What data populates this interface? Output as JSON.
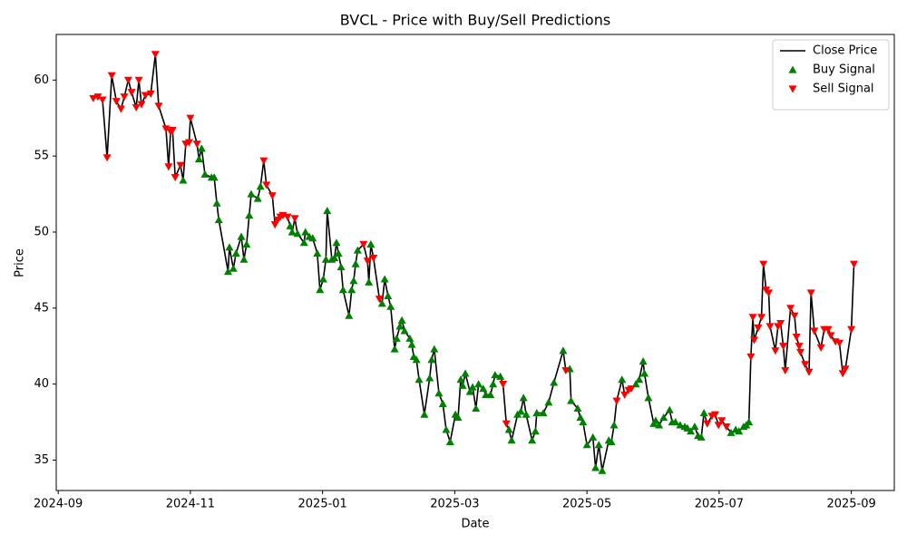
{
  "chart_data": {
    "type": "line",
    "title": "BVCL - Price with Buy/Sell Predictions",
    "x_label": "Date",
    "y_label": "Price",
    "xlim": [
      -0.03,
      12.65
    ],
    "xticks": [
      {
        "value": 0,
        "label": "2024-09"
      },
      {
        "value": 2,
        "label": "2024-11"
      },
      {
        "value": 4,
        "label": "2025-01"
      },
      {
        "value": 6,
        "label": "2025-03"
      },
      {
        "value": 8,
        "label": "2025-05"
      },
      {
        "value": 10,
        "label": "2025-07"
      },
      {
        "value": 12,
        "label": "2025-09"
      }
    ],
    "ylim": [
      33,
      63
    ],
    "yticks": [
      35,
      40,
      45,
      50,
      55,
      60
    ],
    "grid": false,
    "legend": "upper right",
    "series": [
      {
        "name": "Close Price",
        "type": "line",
        "color": "#000000",
        "x": [
          0.53,
          0.6,
          0.67,
          0.74,
          0.81,
          0.88,
          0.95,
          1.0,
          1.06,
          1.11,
          1.18,
          1.22,
          1.26,
          1.32,
          1.4,
          1.47,
          1.52,
          1.63,
          1.67,
          1.7,
          1.73,
          1.77,
          1.85,
          1.89,
          1.93,
          1.98,
          2.0,
          2.1,
          2.13,
          2.17,
          2.22,
          2.32,
          2.36,
          2.4,
          2.43,
          2.57,
          2.59,
          2.65,
          2.69,
          2.77,
          2.81,
          2.85,
          2.89,
          2.92,
          3.02,
          3.06,
          3.11,
          3.15,
          3.24,
          3.28,
          3.32,
          3.36,
          3.4,
          3.47,
          3.51,
          3.54,
          3.58,
          3.62,
          3.72,
          3.74,
          3.8,
          3.85,
          3.92,
          3.96,
          4.01,
          4.05,
          4.07,
          4.14,
          4.18,
          4.21,
          4.24,
          4.28,
          4.31,
          4.4,
          4.44,
          4.47,
          4.5,
          4.53,
          4.62,
          4.68,
          4.7,
          4.73,
          4.77,
          4.86,
          4.9,
          4.94,
          4.99,
          5.03,
          5.09,
          5.12,
          5.17,
          5.2,
          5.24,
          5.32,
          5.35,
          5.38,
          5.42,
          5.46,
          5.54,
          5.62,
          5.65,
          5.69,
          5.76,
          5.82,
          5.87,
          5.93,
          6.01,
          6.05,
          6.09,
          6.12,
          6.16,
          6.23,
          6.27,
          6.32,
          6.36,
          6.43,
          6.47,
          6.54,
          6.58,
          6.61,
          6.69,
          6.73,
          6.78,
          6.82,
          6.86,
          6.95,
          7.0,
          7.04,
          7.08,
          7.17,
          7.22,
          7.24,
          7.34,
          7.42,
          7.5,
          7.64,
          7.68,
          7.74,
          7.76,
          7.86,
          7.9,
          7.94,
          8.0,
          8.09,
          8.13,
          8.18,
          8.23,
          8.33,
          8.37,
          8.41,
          8.45,
          8.53,
          8.57,
          8.63,
          8.67,
          8.74,
          8.79,
          8.85,
          8.87,
          8.93,
          9.01,
          9.04,
          9.09,
          9.16,
          9.25,
          9.29,
          9.34,
          9.41,
          9.48,
          9.52,
          9.57,
          9.63,
          9.68,
          9.73,
          9.77,
          9.82,
          9.89,
          9.94,
          9.99,
          10.04,
          10.11,
          10.18,
          10.25,
          10.3,
          10.37,
          10.41,
          10.45,
          10.48,
          10.51,
          10.53,
          10.59,
          10.64,
          10.67,
          10.71,
          10.75,
          10.77,
          10.85,
          10.89,
          10.93,
          10.97,
          11.0,
          11.08,
          11.14,
          11.17,
          11.21,
          11.23,
          11.3,
          11.36,
          11.39,
          11.44,
          11.54,
          11.59,
          11.65,
          11.69,
          11.76,
          11.82,
          11.87,
          11.91,
          12.0,
          12.04
        ],
        "values": [
          58.8,
          58.9,
          58.7,
          54.9,
          60.3,
          58.6,
          58.1,
          58.9,
          60.0,
          59.2,
          58.2,
          60.0,
          58.4,
          59.0,
          59.1,
          61.7,
          58.3,
          56.8,
          54.3,
          56.6,
          56.7,
          53.6,
          54.4,
          53.4,
          55.8,
          55.9,
          57.5,
          55.8,
          54.8,
          55.5,
          53.8,
          53.6,
          53.6,
          51.9,
          50.8,
          47.4,
          49.0,
          47.6,
          48.6,
          49.7,
          48.2,
          49.2,
          51.1,
          52.5,
          52.2,
          53.0,
          54.7,
          53.1,
          52.4,
          50.5,
          50.8,
          51.0,
          51.1,
          51.0,
          50.4,
          50.0,
          50.9,
          49.9,
          49.3,
          50.0,
          49.7,
          49.6,
          48.6,
          46.2,
          46.9,
          48.2,
          51.4,
          48.2,
          48.3,
          49.3,
          48.6,
          47.7,
          46.2,
          44.5,
          46.2,
          46.8,
          47.9,
          48.8,
          49.2,
          48.1,
          46.7,
          49.2,
          48.3,
          45.6,
          45.3,
          46.9,
          45.8,
          45.1,
          42.3,
          43.0,
          43.8,
          44.2,
          43.5,
          43.0,
          42.6,
          41.8,
          41.6,
          40.3,
          38.0,
          40.4,
          41.6,
          42.3,
          39.4,
          38.7,
          37.0,
          36.2,
          38.0,
          37.8,
          40.3,
          39.9,
          40.7,
          39.5,
          39.8,
          38.4,
          40.0,
          39.7,
          39.3,
          39.3,
          40.0,
          40.6,
          40.5,
          40.0,
          37.4,
          37.0,
          36.3,
          38.0,
          38.2,
          39.1,
          38.0,
          36.3,
          36.9,
          38.1,
          38.1,
          38.8,
          40.1,
          42.2,
          40.9,
          41.0,
          38.9,
          38.4,
          37.8,
          37.5,
          36.0,
          36.5,
          34.5,
          36.0,
          34.3,
          36.3,
          36.2,
          37.3,
          38.9,
          40.3,
          39.3,
          39.6,
          39.7,
          40.0,
          40.3,
          41.5,
          40.7,
          39.1,
          37.4,
          37.6,
          37.3,
          37.8,
          38.3,
          37.5,
          37.5,
          37.3,
          37.2,
          37.1,
          36.9,
          37.2,
          36.6,
          36.5,
          38.1,
          37.4,
          37.9,
          38.0,
          37.3,
          37.6,
          37.2,
          36.8,
          37.0,
          36.9,
          37.2,
          37.3,
          37.5,
          41.8,
          44.4,
          42.9,
          43.7,
          44.4,
          47.9,
          46.2,
          46.0,
          43.8,
          42.2,
          43.8,
          44.0,
          42.5,
          40.9,
          45.0,
          44.5,
          43.1,
          42.5,
          42.1,
          41.3,
          40.8,
          46.0,
          43.5,
          42.4,
          43.6,
          43.6,
          43.2,
          42.8,
          42.7,
          40.7,
          41.0,
          43.6,
          47.9
        ]
      },
      {
        "name": "Buy Signal",
        "type": "scatter",
        "marker": "triangle-up",
        "color": "#008000",
        "x": [
          1.89,
          2.13,
          2.17,
          2.22,
          2.32,
          2.36,
          2.4,
          2.43,
          2.57,
          2.59,
          2.65,
          2.69,
          2.77,
          2.81,
          2.85,
          2.89,
          2.92,
          3.02,
          3.06,
          3.51,
          3.54,
          3.62,
          3.72,
          3.74,
          3.8,
          3.85,
          3.92,
          3.96,
          4.01,
          4.05,
          4.07,
          4.14,
          4.18,
          4.21,
          4.24,
          4.28,
          4.31,
          4.4,
          4.44,
          4.47,
          4.5,
          4.53,
          4.7,
          4.73,
          4.9,
          4.94,
          4.99,
          5.03,
          5.09,
          5.12,
          5.17,
          5.2,
          5.24,
          5.32,
          5.35,
          5.38,
          5.42,
          5.46,
          5.54,
          5.62,
          5.65,
          5.69,
          5.76,
          5.82,
          5.87,
          5.93,
          6.01,
          6.05,
          6.09,
          6.12,
          6.16,
          6.23,
          6.27,
          6.32,
          6.36,
          6.43,
          6.47,
          6.54,
          6.58,
          6.61,
          6.69,
          6.82,
          6.86,
          6.95,
          7.0,
          7.04,
          7.08,
          7.17,
          7.22,
          7.24,
          7.34,
          7.42,
          7.5,
          7.64,
          7.74,
          7.76,
          7.86,
          7.9,
          7.94,
          8.0,
          8.09,
          8.13,
          8.18,
          8.23,
          8.33,
          8.37,
          8.41,
          8.53,
          8.74,
          8.79,
          8.85,
          8.87,
          8.93,
          9.01,
          9.04,
          9.09,
          9.16,
          9.25,
          9.29,
          9.34,
          9.41,
          9.48,
          9.52,
          9.57,
          9.63,
          9.68,
          9.73,
          9.77,
          10.18,
          10.25,
          10.3,
          10.37,
          10.41,
          10.45
        ],
        "values": [
          53.4,
          54.8,
          55.5,
          53.8,
          53.6,
          53.6,
          51.9,
          50.8,
          47.4,
          49.0,
          47.6,
          48.6,
          49.7,
          48.2,
          49.2,
          51.1,
          52.5,
          52.2,
          53.0,
          50.4,
          50.0,
          49.9,
          49.3,
          50.0,
          49.7,
          49.6,
          48.6,
          46.2,
          46.9,
          48.2,
          51.4,
          48.2,
          48.3,
          49.3,
          48.6,
          47.7,
          46.2,
          44.5,
          46.2,
          46.8,
          47.9,
          48.8,
          46.7,
          49.2,
          45.3,
          46.9,
          45.8,
          45.1,
          42.3,
          43.0,
          43.8,
          44.2,
          43.5,
          43.0,
          42.6,
          41.8,
          41.6,
          40.3,
          38.0,
          40.4,
          41.6,
          42.3,
          39.4,
          38.7,
          37.0,
          36.2,
          38.0,
          37.8,
          40.3,
          39.9,
          40.7,
          39.5,
          39.8,
          38.4,
          40.0,
          39.7,
          39.3,
          39.3,
          40.0,
          40.6,
          40.5,
          37.0,
          36.3,
          38.0,
          38.2,
          39.1,
          38.0,
          36.3,
          36.9,
          38.1,
          38.1,
          38.8,
          40.1,
          42.2,
          41.0,
          38.9,
          38.4,
          37.8,
          37.5,
          36.0,
          36.5,
          34.5,
          36.0,
          34.3,
          36.3,
          36.2,
          37.3,
          40.3,
          40.0,
          40.3,
          41.5,
          40.7,
          39.1,
          37.4,
          37.6,
          37.3,
          37.8,
          38.3,
          37.5,
          37.5,
          37.3,
          37.2,
          37.1,
          36.9,
          37.2,
          36.6,
          36.5,
          38.1,
          36.8,
          37.0,
          36.9,
          37.2,
          37.3,
          37.5
        ]
      },
      {
        "name": "Sell Signal",
        "type": "scatter",
        "marker": "triangle-down",
        "color": "#ff0000",
        "x": [
          0.53,
          0.6,
          0.67,
          0.74,
          0.81,
          0.88,
          0.95,
          1.0,
          1.06,
          1.11,
          1.18,
          1.22,
          1.26,
          1.32,
          1.4,
          1.47,
          1.52,
          1.63,
          1.67,
          1.7,
          1.73,
          1.77,
          1.85,
          1.93,
          1.98,
          2.0,
          2.1,
          3.11,
          3.15,
          3.24,
          3.28,
          3.32,
          3.36,
          3.4,
          3.47,
          3.58,
          4.62,
          4.68,
          4.77,
          4.86,
          6.73,
          6.78,
          7.68,
          8.45,
          8.57,
          8.63,
          8.67,
          9.82,
          9.89,
          9.94,
          9.99,
          10.04,
          10.11,
          10.48,
          10.51,
          10.53,
          10.59,
          10.64,
          10.67,
          10.71,
          10.75,
          10.77,
          10.85,
          10.89,
          10.93,
          10.97,
          11.0,
          11.08,
          11.14,
          11.17,
          11.21,
          11.23,
          11.3,
          11.36,
          11.39,
          11.44,
          11.54,
          11.59,
          11.65,
          11.69,
          11.76,
          11.82,
          11.87,
          11.91,
          12.0,
          12.04
        ],
        "values": [
          58.8,
          58.9,
          58.7,
          54.9,
          60.3,
          58.6,
          58.1,
          58.9,
          60.0,
          59.2,
          58.2,
          60.0,
          58.4,
          59.0,
          59.1,
          61.7,
          58.3,
          56.8,
          54.3,
          56.6,
          56.7,
          53.6,
          54.4,
          55.8,
          55.9,
          57.5,
          55.8,
          54.7,
          53.1,
          52.4,
          50.5,
          50.8,
          51.0,
          51.1,
          51.0,
          50.9,
          49.2,
          48.1,
          48.3,
          45.6,
          40.0,
          37.4,
          40.9,
          38.9,
          39.3,
          39.6,
          39.7,
          37.4,
          37.9,
          38.0,
          37.3,
          37.6,
          37.2,
          41.8,
          44.4,
          42.9,
          43.7,
          44.4,
          47.9,
          46.2,
          46.0,
          43.8,
          42.2,
          43.8,
          44.0,
          42.5,
          40.9,
          45.0,
          44.5,
          43.1,
          42.5,
          42.1,
          41.3,
          40.8,
          46.0,
          43.5,
          42.4,
          43.6,
          43.6,
          43.2,
          42.8,
          42.7,
          40.7,
          41.0,
          43.6,
          47.9
        ]
      }
    ]
  }
}
